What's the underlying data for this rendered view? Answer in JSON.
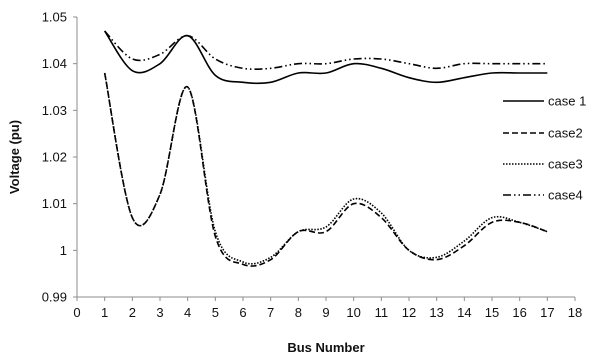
{
  "chart_data": {
    "type": "line",
    "title": "",
    "xlabel": "Bus Number",
    "ylabel": "Voltage (pu)",
    "xlim": [
      0,
      18
    ],
    "ylim": [
      0.99,
      1.05
    ],
    "xticks": [
      0,
      1,
      2,
      3,
      4,
      5,
      6,
      7,
      8,
      9,
      10,
      11,
      12,
      13,
      14,
      15,
      16,
      17,
      18
    ],
    "yticks": [
      0.99,
      1,
      1.01,
      1.02,
      1.03,
      1.04,
      1.05
    ],
    "ytick_labels": [
      "0.99",
      "1",
      "1.01",
      "1.02",
      "1.03",
      "1.04",
      "1.05"
    ],
    "grid": false,
    "legend_position": "right",
    "x": [
      1,
      2,
      3,
      4,
      5,
      6,
      7,
      8,
      9,
      10,
      11,
      12,
      13,
      14,
      15,
      16,
      17
    ],
    "series": [
      {
        "name": "case 1",
        "style": "solid",
        "color": "#000000",
        "values": [
          1.047,
          1.0385,
          1.04,
          1.046,
          1.0375,
          1.036,
          1.036,
          1.038,
          1.038,
          1.04,
          1.039,
          1.037,
          1.036,
          1.037,
          1.038,
          1.038,
          1.038
        ]
      },
      {
        "name": "case2",
        "style": "dashed",
        "color": "#000000",
        "values": [
          1.038,
          1.007,
          1.012,
          1.035,
          1.003,
          0.997,
          0.998,
          1.004,
          1.004,
          1.01,
          1.007,
          1.0,
          0.998,
          1.001,
          1.006,
          1.006,
          1.004
        ]
      },
      {
        "name": "case3",
        "style": "dotted",
        "color": "#000000",
        "values": [
          1.038,
          1.007,
          1.012,
          1.035,
          1.004,
          0.9975,
          0.9985,
          1.004,
          1.005,
          1.011,
          1.008,
          1.0,
          0.9985,
          1.002,
          1.007,
          1.006,
          1.004
        ]
      },
      {
        "name": "case4",
        "style": "dash-dot-dot",
        "color": "#000000",
        "values": [
          1.047,
          1.041,
          1.042,
          1.046,
          1.041,
          1.039,
          1.039,
          1.04,
          1.04,
          1.041,
          1.041,
          1.04,
          1.039,
          1.04,
          1.04,
          1.04,
          1.04
        ]
      }
    ]
  }
}
